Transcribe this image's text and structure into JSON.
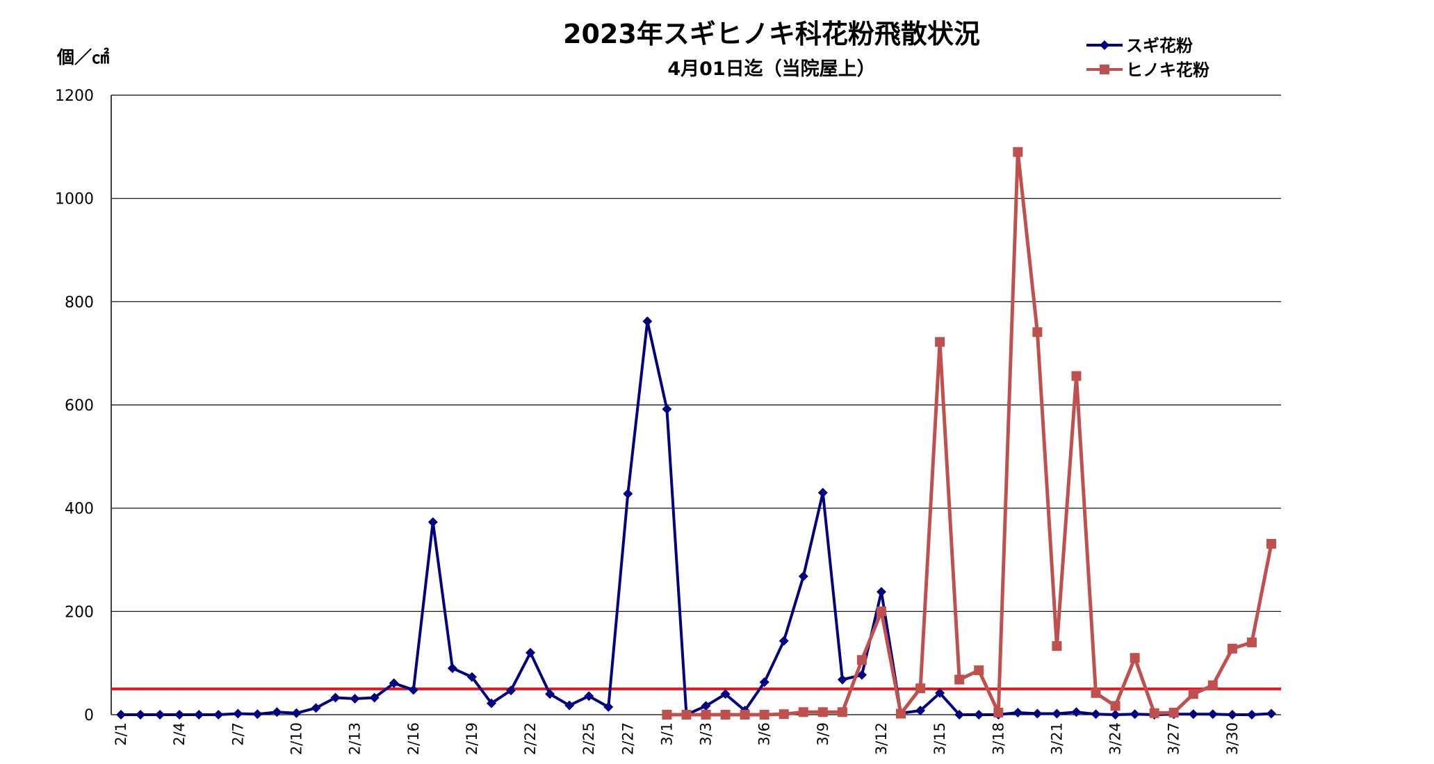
{
  "chart_data": {
    "type": "line",
    "title": "2023年スギヒノキ科花粉飛散状況",
    "subtitle": "4月01日迄（当院屋上）",
    "ylabel": "個／㎠",
    "xlabel": "",
    "ylim": [
      0,
      1200
    ],
    "yticks": [
      0,
      200,
      400,
      600,
      800,
      1000,
      1200
    ],
    "grid": true,
    "legend_position": "top-right",
    "x": [
      "2/1",
      "2/2",
      "2/3",
      "2/4",
      "2/5",
      "2/6",
      "2/7",
      "2/8",
      "2/9",
      "2/10",
      "2/11",
      "2/12",
      "2/13",
      "2/14",
      "2/15",
      "2/16",
      "2/17",
      "2/18",
      "2/19",
      "2/20",
      "2/21",
      "2/22",
      "2/23",
      "2/24",
      "2/25",
      "2/26",
      "2/27",
      "2/28",
      "3/1",
      "3/2",
      "3/3",
      "3/4",
      "3/5",
      "3/6",
      "3/7",
      "3/8",
      "3/9",
      "3/10",
      "3/11",
      "3/12",
      "3/13",
      "3/14",
      "3/15",
      "3/16",
      "3/17",
      "3/18",
      "3/19",
      "3/20",
      "3/21",
      "3/22",
      "3/23",
      "3/24",
      "3/25",
      "3/26",
      "3/27",
      "3/28",
      "3/29",
      "3/30",
      "3/31",
      "4/1"
    ],
    "xtick_labels": [
      "2/1",
      "",
      "",
      "2/4",
      "",
      "",
      "2/7",
      "",
      "",
      "2/10",
      "",
      "",
      "2/13",
      "",
      "",
      "2/16",
      "",
      "",
      "2/19",
      "",
      "",
      "2/22",
      "",
      "",
      "2/25",
      "",
      "2/27",
      "",
      "3/1",
      "",
      "3/3",
      "",
      "",
      "3/6",
      "",
      "",
      "3/9",
      "",
      "",
      "3/12",
      "",
      "",
      "3/15",
      "",
      "",
      "3/18",
      "",
      "",
      "3/21",
      "",
      "",
      "3/24",
      "",
      "",
      "3/27",
      "",
      "",
      "3/30",
      "",
      ""
    ],
    "series": [
      {
        "name": "スギ花粉",
        "color": "#000080",
        "marker": "diamond",
        "values": [
          0,
          0,
          0,
          0,
          0,
          0,
          2,
          1,
          5,
          3,
          13,
          33,
          31,
          33,
          61,
          48,
          373,
          90,
          73,
          22,
          47,
          120,
          40,
          18,
          36,
          15,
          428,
          762,
          592,
          0,
          17,
          40,
          8,
          63,
          143,
          268,
          430,
          68,
          77,
          238,
          3,
          8,
          42,
          0,
          0,
          0,
          4,
          2,
          2,
          5,
          1,
          0,
          1,
          0,
          1,
          1,
          1,
          0,
          0,
          2
        ]
      },
      {
        "name": "ヒノキ花粉",
        "color": "#c0504d",
        "marker": "square",
        "values": [
          null,
          null,
          null,
          null,
          null,
          null,
          null,
          null,
          null,
          null,
          null,
          null,
          null,
          null,
          null,
          null,
          null,
          null,
          null,
          null,
          null,
          null,
          null,
          null,
          null,
          null,
          null,
          null,
          0,
          0,
          0,
          0,
          0,
          0,
          1,
          5,
          5,
          5,
          106,
          200,
          2,
          51,
          722,
          68,
          86,
          4,
          1090,
          741,
          133,
          656,
          42,
          17,
          110,
          3,
          4,
          40,
          57,
          128,
          140,
          331
        ]
      }
    ],
    "reference_line": {
      "value": 50,
      "color": "#e8161b"
    }
  }
}
